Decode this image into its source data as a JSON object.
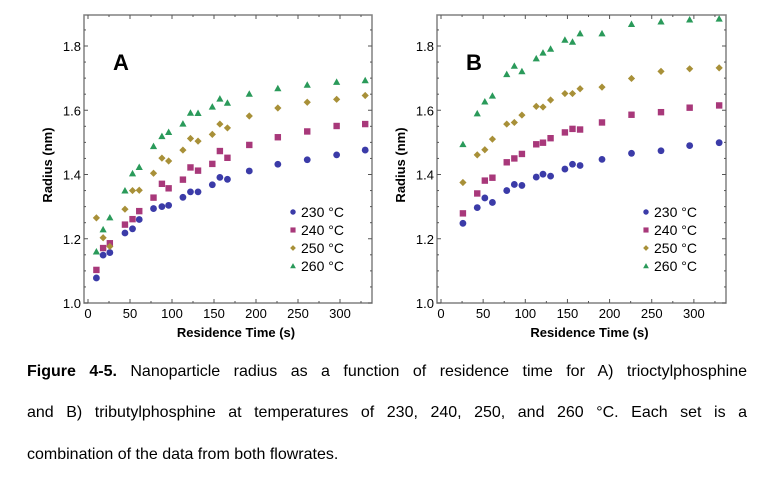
{
  "caption": {
    "label": "Figure 4-5.",
    "line1_rest": " Nanoparticle radius as a function of residence time for A) trioctylphosphine",
    "line2": "and B) tributylphosphine at temperatures of 230, 240, 250, and 260 °C. Each set is a",
    "line3": "combination of the data from both flowrates."
  },
  "colors": {
    "230": "#3b3ba8",
    "240": "#a8387a",
    "250": "#a89038",
    "260": "#2a9a5a"
  },
  "chart_data": [
    {
      "type": "scatter",
      "panel_label": "A",
      "title": "",
      "xlabel": "Residence Time (s)",
      "ylabel": "Radius (nm)",
      "xlim": [
        -5,
        335
      ],
      "ylim": [
        1.0,
        1.9
      ],
      "xticks": [
        0,
        50,
        100,
        150,
        200,
        250,
        300
      ],
      "xtick_labels": [
        "0",
        "50",
        "100",
        "150",
        "200",
        "250",
        "300"
      ],
      "yticks": [
        1.0,
        1.2,
        1.4,
        1.6,
        1.8
      ],
      "ytick_labels": [
        "1.0",
        "1.2",
        "1.4",
        "1.6",
        "1.8"
      ],
      "grid": false,
      "legend_position": "bottom-right",
      "x": [
        10,
        18,
        26,
        44,
        53,
        61,
        78,
        88,
        96,
        113,
        122,
        131,
        148,
        157,
        166,
        192,
        226,
        261,
        296,
        330
      ],
      "series": [
        {
          "name": "230 °C",
          "key": "230",
          "marker": "circle",
          "values": [
            1.078,
            1.149,
            1.157,
            1.218,
            1.231,
            1.26,
            1.294,
            1.3,
            1.304,
            1.329,
            1.346,
            1.346,
            1.368,
            1.391,
            1.385,
            1.411,
            1.432,
            1.446,
            1.461,
            1.476
          ]
        },
        {
          "name": "240 °C",
          "key": "240",
          "marker": "square",
          "values": [
            1.103,
            1.171,
            1.186,
            1.244,
            1.261,
            1.286,
            1.328,
            1.371,
            1.357,
            1.384,
            1.422,
            1.412,
            1.433,
            1.473,
            1.452,
            1.492,
            1.516,
            1.534,
            1.551,
            1.557
          ]
        },
        {
          "name": "250 °C",
          "key": "250",
          "marker": "diamond",
          "values": [
            1.265,
            1.203,
            1.176,
            1.292,
            1.35,
            1.351,
            1.404,
            1.451,
            1.442,
            1.476,
            1.512,
            1.504,
            1.525,
            1.557,
            1.545,
            1.582,
            1.607,
            1.625,
            1.634,
            1.646
          ]
        },
        {
          "name": "260 °C",
          "key": "260",
          "marker": "triangle",
          "values": [
            1.16,
            1.229,
            1.266,
            1.35,
            1.403,
            1.423,
            1.488,
            1.519,
            1.532,
            1.558,
            1.592,
            1.591,
            1.611,
            1.636,
            1.623,
            1.651,
            1.668,
            1.679,
            1.688,
            1.693
          ]
        }
      ]
    },
    {
      "type": "scatter",
      "panel_label": "B",
      "title": "",
      "xlabel": "Residence Time (s)",
      "ylabel": "Radius (nm)",
      "xlim": [
        -5,
        335
      ],
      "ylim": [
        1.0,
        1.9
      ],
      "xticks": [
        0,
        50,
        100,
        150,
        200,
        250,
        300
      ],
      "xtick_labels": [
        "0",
        "50",
        "100",
        "150",
        "200",
        "250",
        "300"
      ],
      "yticks": [
        1.0,
        1.2,
        1.4,
        1.6,
        1.8
      ],
      "ytick_labels": [
        "1.0",
        "1.2",
        "1.4",
        "1.6",
        "1.8"
      ],
      "grid": false,
      "legend_position": "bottom-right",
      "x": [
        26,
        43,
        52,
        61,
        78,
        87,
        96,
        113,
        121,
        130,
        147,
        156,
        165,
        191,
        226,
        261,
        295,
        330
      ],
      "series": [
        {
          "name": "230 °C",
          "key": "230",
          "marker": "circle",
          "values": [
            1.248,
            1.297,
            1.327,
            1.313,
            1.35,
            1.369,
            1.366,
            1.392,
            1.401,
            1.395,
            1.417,
            1.432,
            1.428,
            1.447,
            1.466,
            1.474,
            1.49,
            1.499
          ]
        },
        {
          "name": "240 °C",
          "key": "240",
          "marker": "square",
          "values": [
            1.279,
            1.341,
            1.381,
            1.39,
            1.438,
            1.45,
            1.464,
            1.494,
            1.499,
            1.513,
            1.531,
            1.542,
            1.54,
            1.562,
            1.586,
            1.594,
            1.608,
            1.615
          ]
        },
        {
          "name": "250 °C",
          "key": "250",
          "marker": "diamond",
          "values": [
            1.375,
            1.461,
            1.477,
            1.51,
            1.557,
            1.562,
            1.585,
            1.612,
            1.61,
            1.632,
            1.652,
            1.652,
            1.667,
            1.672,
            1.699,
            1.721,
            1.729,
            1.732
          ]
        },
        {
          "name": "260 °C",
          "key": "260",
          "marker": "triangle",
          "values": [
            1.494,
            1.59,
            1.627,
            1.645,
            1.712,
            1.738,
            1.721,
            1.761,
            1.779,
            1.791,
            1.819,
            1.813,
            1.839,
            1.839,
            1.868,
            1.876,
            1.882,
            1.885
          ]
        }
      ]
    }
  ]
}
